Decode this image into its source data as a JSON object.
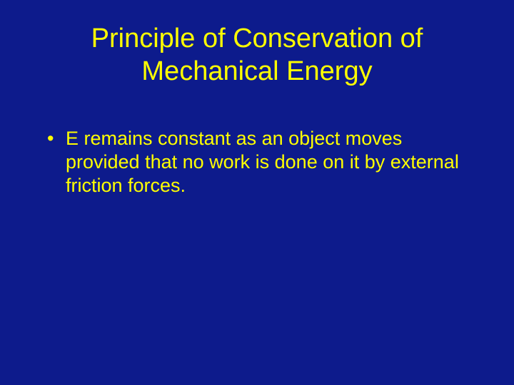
{
  "slide": {
    "background_color": "#0d1b8c",
    "text_color": "#ffff00",
    "title": {
      "line1": "Principle of Conservation of",
      "line2": "Mechanical Energy",
      "fontsize": 38
    },
    "bullets": [
      {
        "text": "E remains constant as an object moves provided that no work is done on it by external friction forces."
      }
    ],
    "bullet_fontsize": 27
  }
}
